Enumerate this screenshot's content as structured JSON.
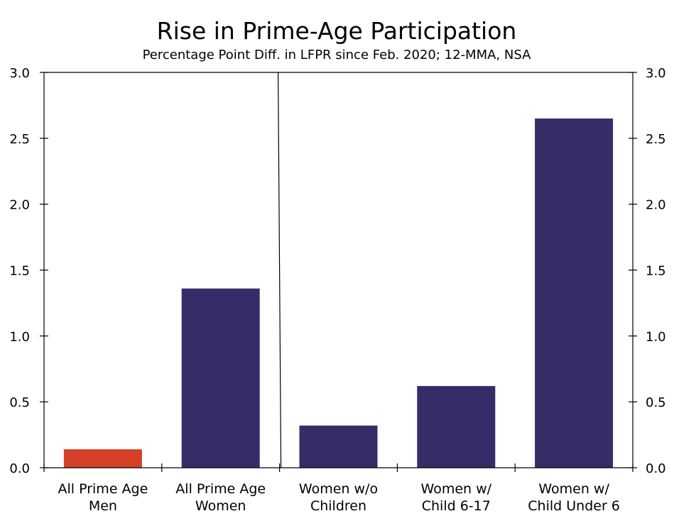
{
  "chart_data": {
    "type": "bar",
    "title": "Rise in Prime-Age Participation",
    "subtitle": "Percentage Point Diff. in LFPR since Feb. 2020; 12-MMA, NSA",
    "categories": [
      [
        "All Prime Age",
        "Men"
      ],
      [
        "All Prime Age",
        "Women"
      ],
      [
        "Women w/o",
        "Children"
      ],
      [
        "Women w/",
        "Child 6-17"
      ],
      [
        "Women w/",
        "Child Under 6"
      ]
    ],
    "values": [
      0.14,
      1.36,
      0.32,
      0.62,
      2.65
    ],
    "bar_colors": [
      "#d63f28",
      "#352c68",
      "#352c68",
      "#352c68",
      "#352c68"
    ],
    "ylim": [
      0,
      3
    ],
    "yticks": [
      "0.0",
      "0.5",
      "1.0",
      "1.5",
      "2.0",
      "2.5",
      "3.0"
    ],
    "divider_between_categories": [
      2,
      3
    ],
    "grid": false,
    "xlabel": "",
    "ylabel": ""
  }
}
